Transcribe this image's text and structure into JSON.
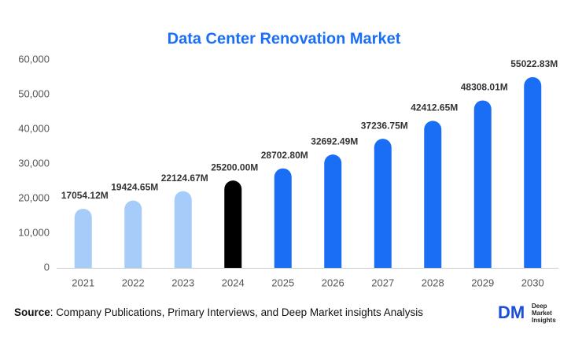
{
  "chart_data": {
    "type": "bar",
    "title": "Data Center Renovation Market",
    "categories": [
      "2021",
      "2022",
      "2023",
      "2024",
      "2025",
      "2026",
      "2027",
      "2028",
      "2029",
      "2030"
    ],
    "values": [
      17054.12,
      19424.65,
      22124.67,
      25200.0,
      28702.8,
      32692.49,
      37236.75,
      42412.65,
      48308.01,
      55022.83
    ],
    "value_labels": [
      "17054.12M",
      "19424.65M",
      "22124.67M",
      "25200.00M",
      "28702.80M",
      "32692.49M",
      "37236.75M",
      "42412.65M",
      "48308.01M",
      "55022.83M"
    ],
    "colors": [
      "#a6cdf9",
      "#a6cdf9",
      "#a6cdf9",
      "#000000",
      "#1a6ef5",
      "#1a6ef5",
      "#1a6ef5",
      "#1a6ef5",
      "#1a6ef5",
      "#1a6ef5"
    ],
    "ylim": [
      0,
      60000
    ],
    "yticks": [
      0,
      {
        "value": 10000,
        "label": "10,000"
      },
      {
        "value": 20000,
        "label": "20,000"
      },
      {
        "value": 30000,
        "label": "30,000"
      },
      {
        "value": 40000,
        "label": "40,000"
      },
      {
        "value": 50000,
        "label": "50,000"
      },
      {
        "value": 60000,
        "label": "60,000"
      }
    ],
    "grid": false
  },
  "footer": {
    "source_label": "Source",
    "source_text": ": Company Publications, Primary Interviews, and Deep Market insights Analysis"
  },
  "logo": {
    "mark": "DM",
    "lines": [
      "Deep",
      "Market",
      "Insights"
    ]
  }
}
